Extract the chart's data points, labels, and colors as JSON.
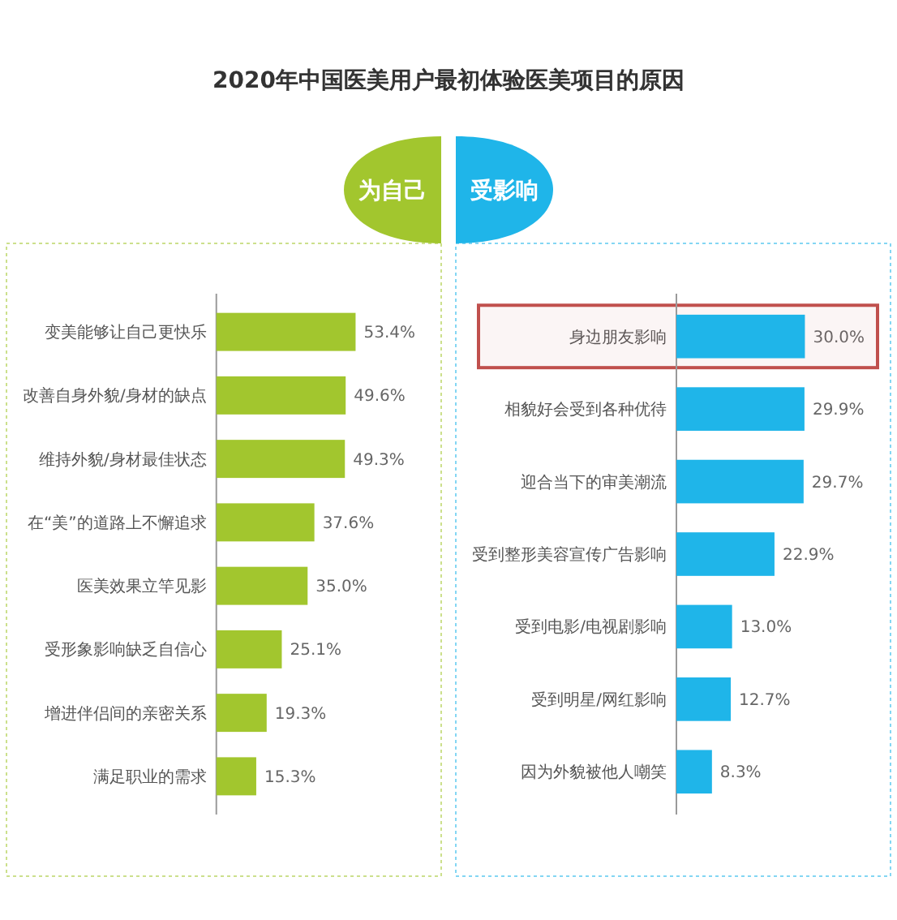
{
  "chart_data": [
    {
      "type": "bar",
      "orientation": "horizontal",
      "title": "2020年中国医美用户最初体验医美项目的原因",
      "subtitle": "为自己",
      "color": "#a2c62e",
      "categories": [
        "变美能够让自己更快乐",
        "改善自身外貌/身材的缺点",
        "维持外貌/身材最佳状态",
        "在“美”的道路上不懈追求",
        "医美效果立竿见影",
        "受形象影响缺乏自信心",
        "增进伴侣间的亲密关系",
        "满足职业的需求"
      ],
      "values": [
        53.4,
        49.6,
        49.3,
        37.6,
        35.0,
        25.1,
        19.3,
        15.3
      ],
      "value_labels": [
        "53.4%",
        "49.6%",
        "49.3%",
        "37.6%",
        "35.0%",
        "25.1%",
        "19.3%",
        "15.3%"
      ]
    },
    {
      "type": "bar",
      "orientation": "horizontal",
      "subtitle": "受影响",
      "color": "#1fb5e9",
      "categories": [
        "身边朋友影响",
        "相貌好会受到各种优待",
        "迎合当下的审美潮流",
        "受到整形美容宣传广告影响",
        "受到电影/电视剧影响",
        "受到明星/网红影响",
        "因为外貌被他人嘲笑"
      ],
      "values": [
        30.0,
        29.9,
        29.7,
        22.9,
        13.0,
        12.7,
        8.3
      ],
      "value_labels": [
        "30.0%",
        "29.9%",
        "29.7%",
        "22.9%",
        "13.0%",
        "12.7%",
        "8.3%"
      ],
      "bands": [
        {
          "axis": "y",
          "from": "身边朋友影响",
          "to": "身边朋友影响",
          "color": "#c0504d"
        }
      ]
    }
  ]
}
